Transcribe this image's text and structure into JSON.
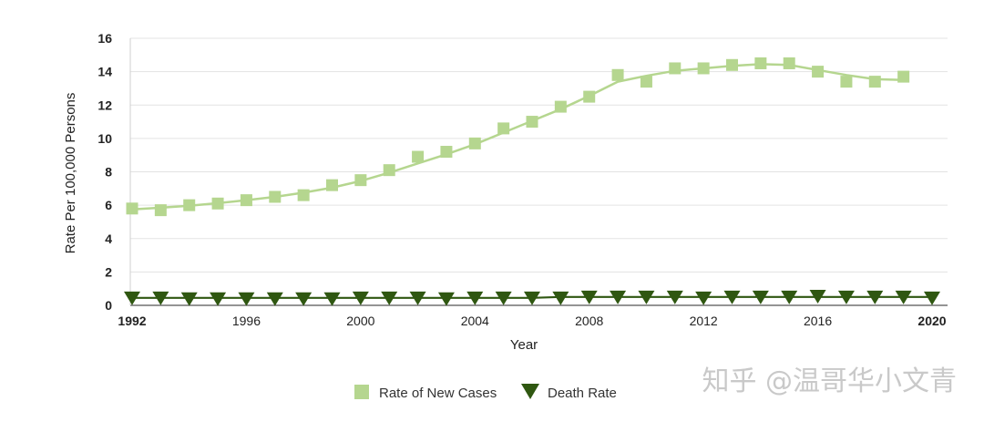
{
  "chart_data": {
    "type": "line",
    "xlabel": "Year",
    "ylabel": "Rate Per 100,000 Persons",
    "xlim": [
      1992,
      2020
    ],
    "ylim": [
      0,
      16
    ],
    "y_ticks": [
      "0",
      "2",
      "4",
      "6",
      "8",
      "10",
      "12",
      "14",
      "16"
    ],
    "x_ticks": [
      {
        "value": 1992,
        "label": "1992",
        "bold": true
      },
      {
        "value": 1996,
        "label": "1996",
        "bold": false
      },
      {
        "value": 2000,
        "label": "2000",
        "bold": false
      },
      {
        "value": 2004,
        "label": "2004",
        "bold": false
      },
      {
        "value": 2008,
        "label": "2008",
        "bold": false
      },
      {
        "value": 2012,
        "label": "2012",
        "bold": false
      },
      {
        "value": 2016,
        "label": "2016",
        "bold": false
      },
      {
        "value": 2020,
        "label": "2020",
        "bold": true
      }
    ],
    "grid": true,
    "legend_position": "bottom-center",
    "series": [
      {
        "name": "Rate of New Cases",
        "color": "#b5d68f",
        "marker": "square",
        "x": [
          1992,
          1993,
          1994,
          1995,
          1996,
          1997,
          1998,
          1999,
          2000,
          2001,
          2002,
          2003,
          2004,
          2005,
          2006,
          2007,
          2008,
          2009,
          2010,
          2011,
          2012,
          2013,
          2014,
          2015,
          2016,
          2017,
          2018,
          2019
        ],
        "values": [
          5.8,
          5.7,
          6.0,
          6.1,
          6.3,
          6.5,
          6.6,
          7.2,
          7.5,
          8.1,
          8.9,
          9.2,
          9.7,
          10.6,
          11.0,
          11.9,
          12.5,
          13.8,
          13.4,
          14.2,
          14.2,
          14.4,
          14.5,
          14.5,
          14.0,
          13.4,
          13.4,
          13.7
        ],
        "trend": [
          5.75,
          5.85,
          5.97,
          6.12,
          6.3,
          6.5,
          6.75,
          7.05,
          7.45,
          7.95,
          8.5,
          9.05,
          9.65,
          10.35,
          11.05,
          11.75,
          12.55,
          13.4,
          13.75,
          14.05,
          14.2,
          14.35,
          14.45,
          14.4,
          14.1,
          13.8,
          13.55,
          13.5
        ]
      },
      {
        "name": "Death Rate",
        "color": "#2f5711",
        "marker": "triangle-down",
        "x": [
          1992,
          1993,
          1994,
          1995,
          1996,
          1997,
          1998,
          1999,
          2000,
          2001,
          2002,
          2003,
          2004,
          2005,
          2006,
          2007,
          2008,
          2009,
          2010,
          2011,
          2012,
          2013,
          2014,
          2015,
          2016,
          2017,
          2018,
          2019,
          2020
        ],
        "values": [
          0.5,
          0.5,
          0.45,
          0.45,
          0.45,
          0.45,
          0.45,
          0.45,
          0.5,
          0.5,
          0.5,
          0.45,
          0.5,
          0.5,
          0.5,
          0.5,
          0.55,
          0.55,
          0.55,
          0.55,
          0.5,
          0.55,
          0.55,
          0.55,
          0.6,
          0.55,
          0.55,
          0.55,
          0.5
        ],
        "trend": [
          0.45,
          0.45,
          0.45,
          0.45,
          0.45,
          0.45,
          0.45,
          0.45,
          0.45,
          0.45,
          0.45,
          0.45,
          0.45,
          0.45,
          0.45,
          0.5,
          0.5,
          0.5,
          0.5,
          0.5,
          0.5,
          0.5,
          0.5,
          0.5,
          0.5,
          0.5,
          0.5,
          0.5,
          0.5
        ]
      }
    ]
  },
  "watermark": "知乎 @温哥华小文青"
}
